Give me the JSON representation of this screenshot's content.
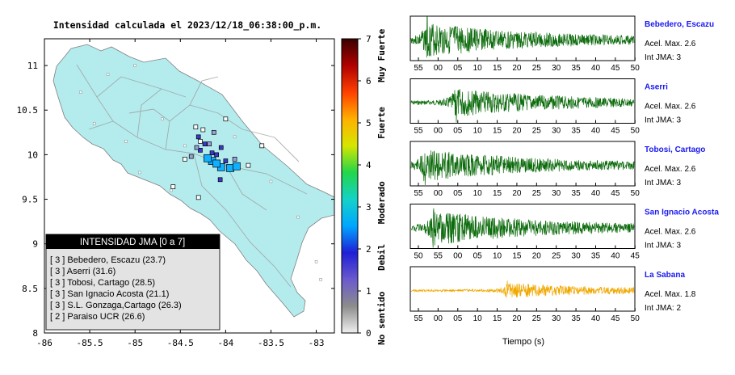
{
  "map": {
    "title": "Intensidad calculada el 2023/12/18_06:38:00_p.m.",
    "x_ticks": [
      "-86",
      "-85.5",
      "-85",
      "-84.5",
      "-84",
      "-83.5",
      "-83"
    ],
    "y_ticks": [
      "11",
      "10.5",
      "10",
      "9.5",
      "9",
      "8.5",
      "8"
    ],
    "xlim": [
      -86,
      -82.8
    ],
    "ylim": [
      8,
      11.3
    ],
    "land_color": "#b4ecee",
    "stations": [
      {
        "lon": -84.15,
        "lat": 9.93,
        "level": 3
      },
      {
        "lon": -84.05,
        "lat": 9.86,
        "level": 3
      },
      {
        "lon": -83.95,
        "lat": 9.85,
        "level": 3
      },
      {
        "lon": -84.2,
        "lat": 9.96,
        "level": 3
      },
      {
        "lon": -84.1,
        "lat": 9.9,
        "level": 3
      },
      {
        "lon": -83.88,
        "lat": 9.87,
        "level": 3
      },
      {
        "lon": -84.0,
        "lat": 9.93,
        "level": 2
      },
      {
        "lon": -84.1,
        "lat": 10.0,
        "level": 2
      },
      {
        "lon": -84.15,
        "lat": 10.02,
        "level": 2
      },
      {
        "lon": -84.28,
        "lat": 10.05,
        "level": 2
      },
      {
        "lon": -84.05,
        "lat": 10.08,
        "level": 2
      },
      {
        "lon": -84.3,
        "lat": 10.2,
        "level": 2
      },
      {
        "lon": -84.23,
        "lat": 10.12,
        "level": 2
      },
      {
        "lon": -84.32,
        "lat": 10.08,
        "level": 1
      },
      {
        "lon": -84.18,
        "lat": 10.12,
        "level": 1
      },
      {
        "lon": -84.38,
        "lat": 9.98,
        "level": 1
      },
      {
        "lon": -84.06,
        "lat": 9.72,
        "level": 2
      },
      {
        "lon": -83.9,
        "lat": 9.95,
        "level": 1
      },
      {
        "lon": -84.45,
        "lat": 9.95,
        "level": 0
      },
      {
        "lon": -84.0,
        "lat": 10.4,
        "level": 0
      },
      {
        "lon": -84.25,
        "lat": 10.28,
        "level": 0
      },
      {
        "lon": -84.3,
        "lat": 9.52,
        "level": 0
      },
      {
        "lon": -84.58,
        "lat": 9.64,
        "level": 0
      },
      {
        "lon": -83.6,
        "lat": 10.1,
        "level": 0
      },
      {
        "lon": -83.75,
        "lat": 9.88,
        "level": 0
      },
      {
        "lon": -84.28,
        "lat": 10.15,
        "level": 0
      },
      {
        "lon": -84.13,
        "lat": 10.25,
        "level": 1
      },
      {
        "lon": -84.33,
        "lat": 10.31,
        "level": 0
      }
    ]
  },
  "legend": {
    "title": "INTENSIDAD JMA [0 a 7]",
    "entries": [
      "[ 3 ]  Bebedero, Escazu (23.7)",
      "[ 3 ]  Aserri (31.6)",
      "[ 3 ]  Tobosi, Cartago (28.5)",
      "[ 3 ]  San Ignacio Acosta (21.1)",
      "[ 3 ]  S.L. Gonzaga,Cartago (26.3)",
      "[ 2 ]  Paraiso UCR (26.6)"
    ]
  },
  "colorbar": {
    "ticks": [
      "7",
      "6",
      "5",
      "4",
      "3",
      "2",
      "1",
      "0"
    ],
    "categories": [
      "Muy Fuerte",
      "Fuerte",
      "Moderado",
      "Debil",
      "No sentido"
    ],
    "stops": [
      "#f0f0f0",
      "#8c8c8c",
      "#6a5acd",
      "#1f1fd6",
      "#00a6ff",
      "#14d2c8",
      "#22d64a",
      "#d6e600",
      "#ffb000",
      "#ff4000",
      "#b00000",
      "#3a0000"
    ]
  },
  "waveforms": {
    "xlabel": "Tiempo (s)",
    "panels": [
      {
        "station": "Bebedero, Escazu",
        "accel": "Acel. Max. 2.6",
        "int": "Int JMA: 3",
        "color": "#0c6b0c",
        "ticks": [
          "55",
          "00",
          "05",
          "10",
          "15",
          "20",
          "25",
          "30",
          "35",
          "40",
          "45",
          "50"
        ],
        "first_tick": 55,
        "peak_pos": 0.07,
        "amp": 0.9,
        "seed": 3
      },
      {
        "station": "Aserri",
        "accel": "Acel. Max. 2.6",
        "int": "Int JMA: 3",
        "color": "#0c6b0c",
        "ticks": [
          "55",
          "00",
          "05",
          "10",
          "15",
          "20",
          "25",
          "30",
          "35",
          "40",
          "45",
          "50"
        ],
        "first_tick": 55,
        "peak_pos": 0.2,
        "amp": 0.75,
        "seed": 7
      },
      {
        "station": "Tobosi, Cartago",
        "accel": "Acel. Max. 2.6",
        "int": "Int JMA: 3",
        "color": "#0c6b0c",
        "ticks": [
          "55",
          "00",
          "05",
          "10",
          "15",
          "20",
          "25",
          "30",
          "35",
          "40",
          "45",
          "50"
        ],
        "first_tick": 55,
        "peak_pos": 0.06,
        "amp": 0.85,
        "seed": 11
      },
      {
        "station": "San Ignacio Acosta",
        "accel": "Acel. Max. 2.6",
        "int": "Int JMA: 3",
        "color": "#0c6b0c",
        "ticks": [
          "50",
          "55",
          "00",
          "05",
          "10",
          "15",
          "20",
          "25",
          "30",
          "35",
          "40",
          "45"
        ],
        "first_tick": 50,
        "peak_pos": 0.1,
        "amp": 0.9,
        "seed": 19
      },
      {
        "station": "La Sabana",
        "accel": "Acel. Max. 1.8",
        "int": "Int JMA: 2",
        "color": "#f0a800",
        "ticks": [
          "55",
          "00",
          "05",
          "10",
          "15",
          "20",
          "25",
          "30",
          "35",
          "40",
          "45",
          "50"
        ],
        "first_tick": 55,
        "peak_pos": 0.43,
        "amp": 0.4,
        "seed": 23
      }
    ]
  }
}
